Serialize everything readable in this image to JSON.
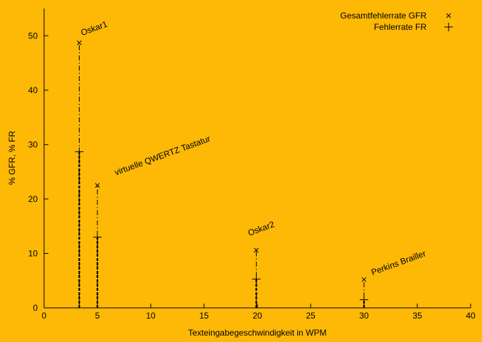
{
  "colors": {
    "background": "#FDB905",
    "ink": "#000000"
  },
  "chart_data": {
    "type": "scatter",
    "title": "",
    "xlabel": "Texteingabegeschwindigkeit in WPM",
    "ylabel": "% GFR, % FR",
    "xlim": [
      0,
      40
    ],
    "ylim": [
      0,
      55
    ],
    "xticks": [
      0,
      5,
      10,
      15,
      20,
      25,
      30,
      35,
      40
    ],
    "yticks": [
      0,
      10,
      20,
      30,
      40,
      50
    ],
    "grid": false,
    "legend": "top-right",
    "series": [
      {
        "name": "Gesamtfehlerrate GFR",
        "marker": "x",
        "points": [
          {
            "x": 3.3,
            "y": 48.7
          },
          {
            "x": 5.0,
            "y": 22.5
          },
          {
            "x": 19.9,
            "y": 10.6
          },
          {
            "x": 30.0,
            "y": 5.2
          }
        ]
      },
      {
        "name": "Fehlerrate FR",
        "marker": "+",
        "points": [
          {
            "x": 3.3,
            "y": 28.7
          },
          {
            "x": 5.0,
            "y": 13.0
          },
          {
            "x": 19.9,
            "y": 5.3
          },
          {
            "x": 30.0,
            "y": 1.5
          }
        ]
      }
    ],
    "annotations": [
      {
        "text": "Oskar1",
        "x": 3.3,
        "y": 48.7
      },
      {
        "text": "virtuelle QWERTZ Tastatur",
        "x": 5.0,
        "y": 22.5
      },
      {
        "text": "Oskar2",
        "x": 19.9,
        "y": 10.6
      },
      {
        "text": "Perkins Brailler",
        "x": 30.0,
        "y": 5.2
      }
    ]
  }
}
